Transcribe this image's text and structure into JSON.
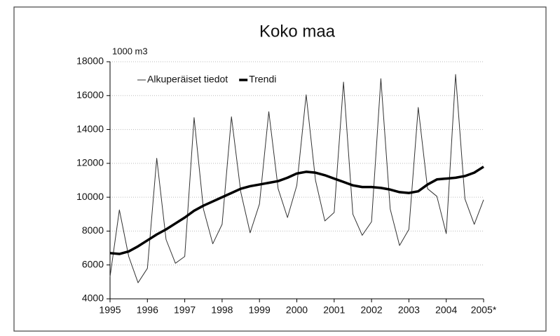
{
  "chart_data": {
    "type": "line",
    "title": "Koko maa",
    "ylabel": "1000 m3",
    "x": [
      1995,
      1995.25,
      1995.5,
      1995.75,
      1996,
      1996.25,
      1996.5,
      1996.75,
      1997,
      1997.25,
      1997.5,
      1997.75,
      1998,
      1998.25,
      1998.5,
      1998.75,
      1999,
      1999.25,
      1999.5,
      1999.75,
      2000,
      2000.25,
      2000.5,
      2000.75,
      2001,
      2001.25,
      2001.5,
      2001.75,
      2002,
      2002.25,
      2002.5,
      2002.75,
      2003,
      2003.25,
      2003.5,
      2003.75,
      2004,
      2004.25,
      2004.5,
      2004.75,
      2005
    ],
    "series": [
      {
        "name": "Alkuperäiset tiedot",
        "color": "#333333",
        "values": [
          5300,
          9250,
          6500,
          4950,
          5800,
          12300,
          7500,
          6100,
          6500,
          14700,
          9300,
          7250,
          8400,
          14750,
          10300,
          7900,
          9600,
          15050,
          10500,
          8800,
          10700,
          16050,
          11000,
          8600,
          9100,
          16800,
          9000,
          7750,
          8550,
          17000,
          9300,
          7150,
          8100,
          15300,
          10500,
          10050,
          7850,
          17250,
          9900,
          8400,
          9850
        ]
      },
      {
        "name": "Trendi",
        "color": "#000000",
        "values": [
          6700,
          6650,
          6800,
          7100,
          7450,
          7800,
          8100,
          8450,
          8800,
          9200,
          9500,
          9750,
          10000,
          10250,
          10500,
          10650,
          10750,
          10850,
          10950,
          11150,
          11400,
          11500,
          11450,
          11300,
          11100,
          10900,
          10700,
          10600,
          10600,
          10550,
          10450,
          10300,
          10250,
          10350,
          10750,
          11050,
          11100,
          11150,
          11250,
          11450,
          11800
        ]
      }
    ],
    "xlim": [
      1995,
      2005
    ],
    "xticks": [
      1995,
      1996,
      1997,
      1998,
      1999,
      2000,
      2001,
      2002,
      2003,
      2004,
      {
        "value": 2005,
        "label": "2005*"
      }
    ],
    "ylim": [
      4000,
      18000
    ],
    "yticks": [
      4000,
      6000,
      8000,
      10000,
      12000,
      14000,
      16000,
      18000
    ],
    "grid": true
  }
}
